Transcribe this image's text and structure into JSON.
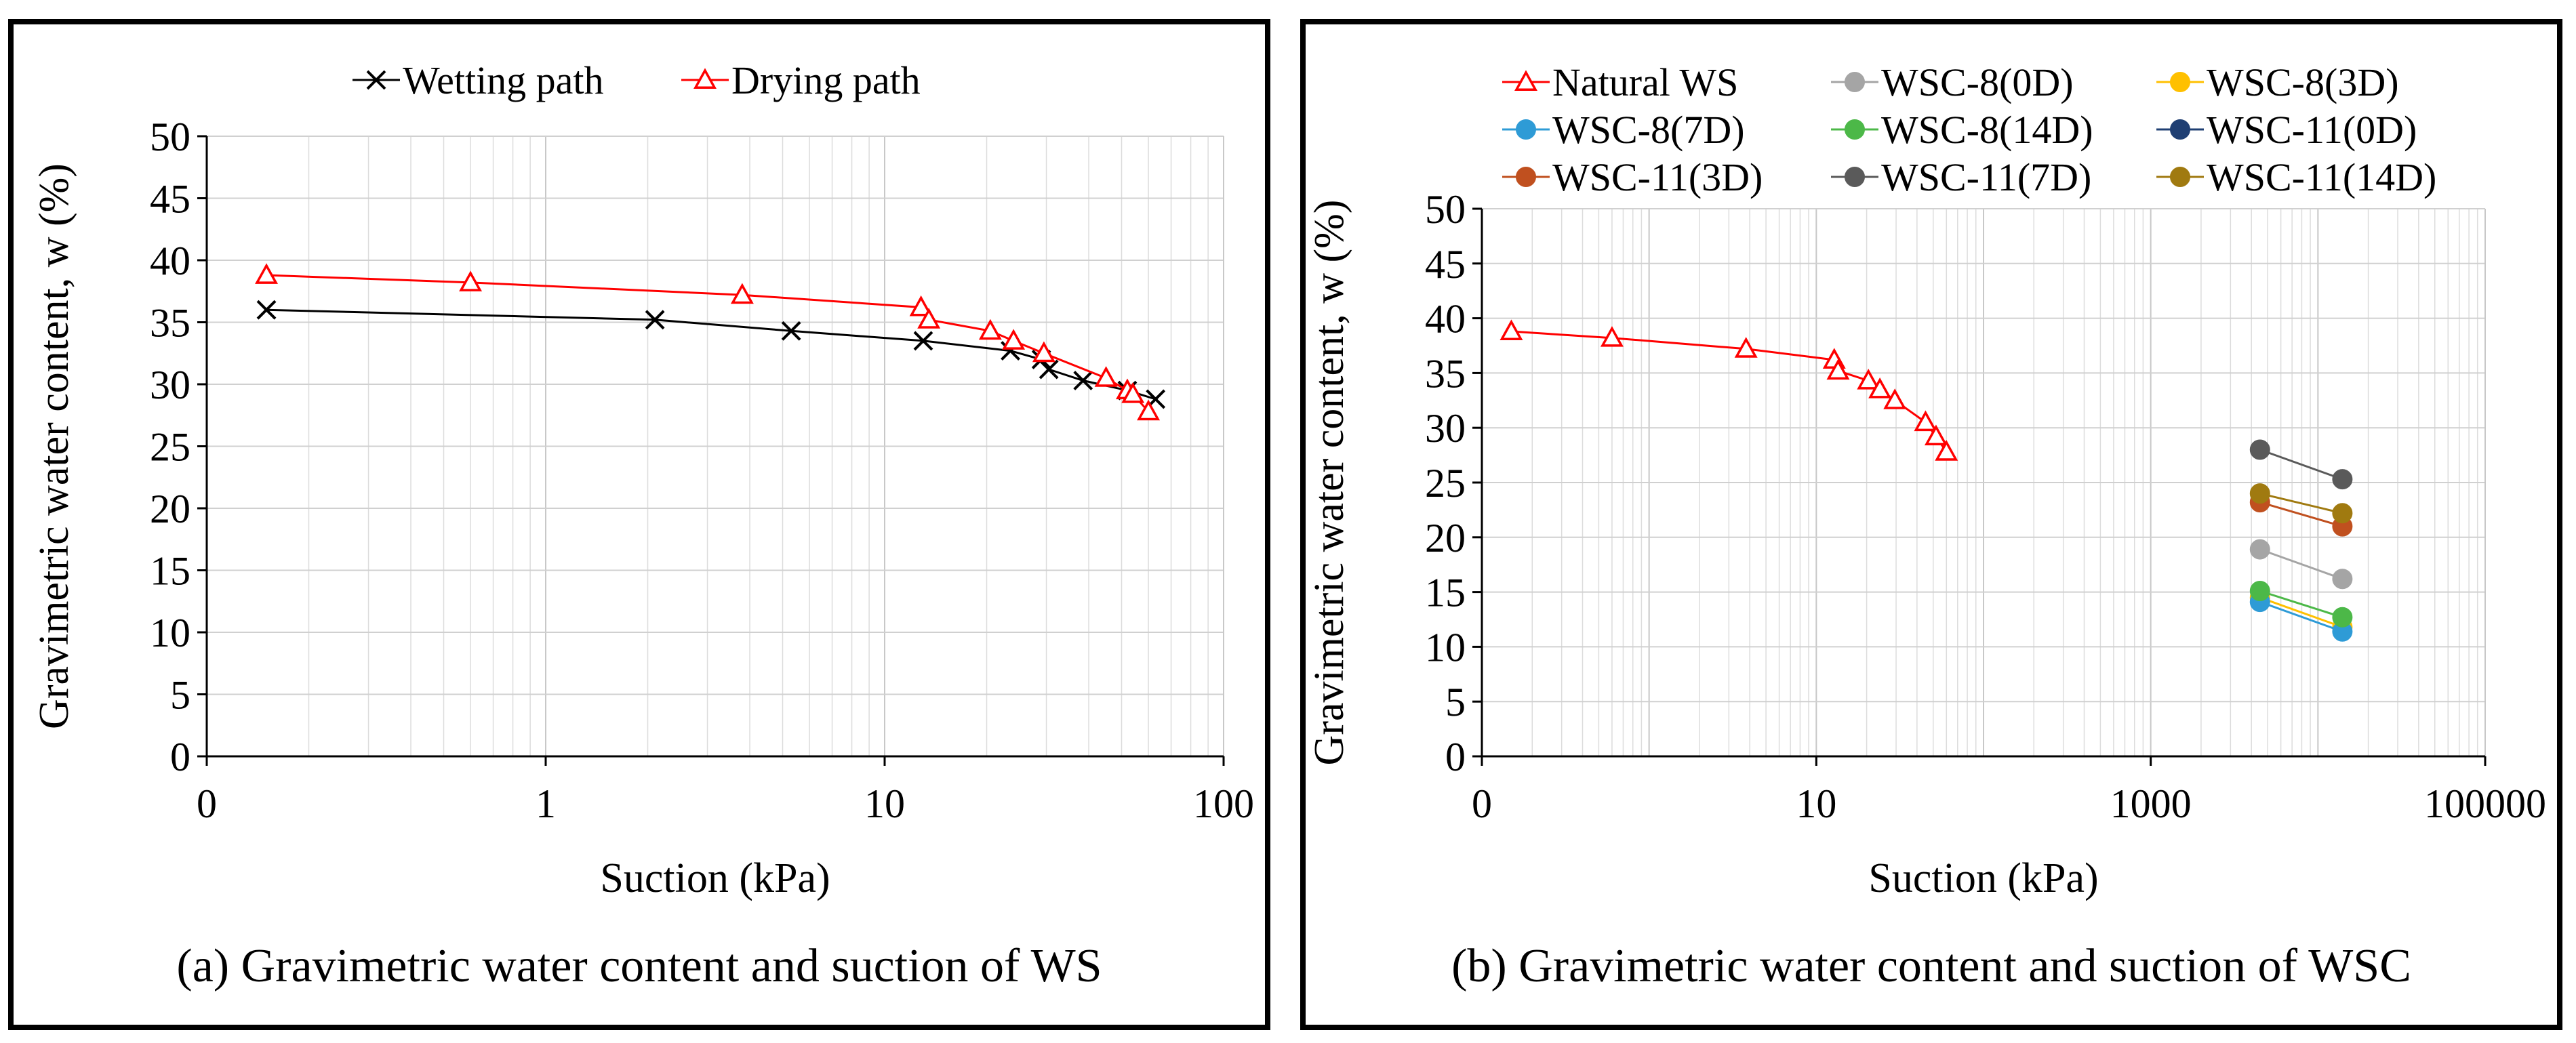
{
  "chart_data": [
    {
      "type": "line",
      "panel": "a",
      "caption": "(a) Gravimetric water content and suction of WS",
      "xlabel": "Suction (kPa)",
      "ylabel": "Gravimetric water content, w (%)",
      "xscale": "log",
      "xlim": [
        0.1,
        100
      ],
      "xticklabels": [
        "0",
        "1",
        "10",
        "100"
      ],
      "ylim": [
        0,
        50
      ],
      "yticks": [
        0,
        5,
        10,
        15,
        20,
        25,
        30,
        35,
        40,
        45,
        50
      ],
      "grid": true,
      "legend_position": "top-center",
      "series": [
        {
          "name": "Wetting path",
          "color": "#000000",
          "marker": "x",
          "points": [
            [
              0.15,
              36.0
            ],
            [
              2.1,
              35.2
            ],
            [
              5.3,
              34.3
            ],
            [
              13.0,
              33.5
            ],
            [
              23.5,
              32.7
            ],
            [
              29.0,
              32.0
            ],
            [
              30.5,
              31.2
            ],
            [
              38.5,
              30.3
            ],
            [
              52.0,
              29.5
            ],
            [
              63.0,
              28.8
            ]
          ]
        },
        {
          "name": "Drying path",
          "color": "#ff0000",
          "marker": "triangle",
          "points": [
            [
              0.15,
              38.8
            ],
            [
              0.6,
              38.2
            ],
            [
              3.8,
              37.2
            ],
            [
              12.8,
              36.2
            ],
            [
              13.5,
              35.2
            ],
            [
              20.5,
              34.3
            ],
            [
              24.0,
              33.5
            ],
            [
              29.5,
              32.5
            ],
            [
              45.0,
              30.5
            ],
            [
              52.0,
              29.5
            ],
            [
              54.0,
              29.2
            ],
            [
              60.0,
              27.8
            ]
          ]
        }
      ]
    },
    {
      "type": "line",
      "panel": "b",
      "caption": "(b) Gravimetric water content and suction of WSC",
      "xlabel": "Suction (kPa)",
      "ylabel": "Gravimetric water content, w (%)",
      "xscale": "log",
      "xlim": [
        0.1,
        100000
      ],
      "xticklabels": [
        "0",
        "10",
        "1000",
        "100000"
      ],
      "ylim": [
        0,
        50
      ],
      "yticks": [
        0,
        5,
        10,
        15,
        20,
        25,
        30,
        35,
        40,
        45,
        50
      ],
      "grid": true,
      "legend_position": "top",
      "series": [
        {
          "name": "Natural WS",
          "color": "#ff0000",
          "marker": "triangle",
          "points": [
            [
              0.15,
              38.8
            ],
            [
              0.6,
              38.2
            ],
            [
              3.8,
              37.2
            ],
            [
              12.8,
              36.2
            ],
            [
              13.5,
              35.2
            ],
            [
              20.5,
              34.3
            ],
            [
              24.0,
              33.5
            ],
            [
              29.5,
              32.5
            ],
            [
              45.0,
              30.5
            ],
            [
              52.0,
              29.2
            ],
            [
              60.0,
              27.8
            ]
          ]
        },
        {
          "name": "WSC-8(0D)",
          "color": "#a5a5a5",
          "marker": "circle",
          "points": [
            [
              4500,
              18.9
            ],
            [
              14000,
              16.2
            ]
          ]
        },
        {
          "name": "WSC-8(3D)",
          "color": "#ffc000",
          "marker": "circle",
          "points": [
            [
              4500,
              14.5
            ],
            [
              14000,
              11.8
            ]
          ]
        },
        {
          "name": "WSC-8(7D)",
          "color": "#2e9bd6",
          "marker": "circle",
          "points": [
            [
              4500,
              14.1
            ],
            [
              14000,
              11.4
            ]
          ]
        },
        {
          "name": "WSC-8(14D)",
          "color": "#4cb848",
          "marker": "circle",
          "points": [
            [
              4500,
              15.1
            ],
            [
              14000,
              12.7
            ]
          ]
        },
        {
          "name": "WSC-11(0D)",
          "color": "#1f3f73",
          "marker": "circle",
          "points": []
        },
        {
          "name": "WSC-11(3D)",
          "color": "#c0501f",
          "marker": "circle",
          "points": [
            [
              4500,
              23.2
            ],
            [
              14000,
              21.0
            ]
          ]
        },
        {
          "name": "WSC-11(7D)",
          "color": "#5a5a5a",
          "marker": "circle",
          "points": [
            [
              4500,
              28.0
            ],
            [
              14000,
              25.3
            ]
          ]
        },
        {
          "name": "WSC-11(14D)",
          "color": "#a07a10",
          "marker": "circle",
          "points": [
            [
              4500,
              24.0
            ],
            [
              14000,
              22.2
            ]
          ]
        }
      ]
    }
  ]
}
